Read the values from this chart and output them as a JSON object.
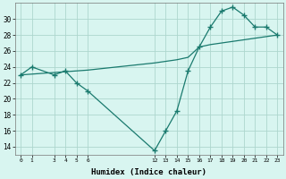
{
  "x_main": [
    0,
    1,
    3,
    4,
    5,
    6,
    12,
    13,
    14,
    15,
    16,
    17,
    18,
    19,
    20,
    21,
    22,
    23
  ],
  "y_main": [
    23,
    24,
    23,
    23.5,
    22,
    21,
    13.5,
    16,
    18.5,
    23.5,
    26.5,
    29,
    31,
    31.5,
    30.5,
    29,
    29,
    28
  ],
  "x_trend": [
    0,
    1,
    3,
    4,
    5,
    6,
    12,
    13,
    14,
    15,
    16,
    17,
    18,
    19,
    20,
    21,
    22,
    23
  ],
  "y_trend": [
    23,
    23.1,
    23.3,
    23.4,
    23.5,
    23.6,
    24.5,
    24.7,
    24.9,
    25.2,
    26.5,
    26.8,
    27.0,
    27.2,
    27.4,
    27.6,
    27.8,
    28.0
  ],
  "line_color": "#1a7a6e",
  "bg_color": "#d8f5f0",
  "grid_major_color": "#aed6ce",
  "grid_minor_color": "#c8eae4",
  "xlabel": "Humidex (Indice chaleur)",
  "yticks": [
    14,
    16,
    18,
    20,
    22,
    24,
    26,
    28,
    30
  ],
  "ylim": [
    13,
    32
  ],
  "xlim": [
    -0.5,
    23.5
  ]
}
